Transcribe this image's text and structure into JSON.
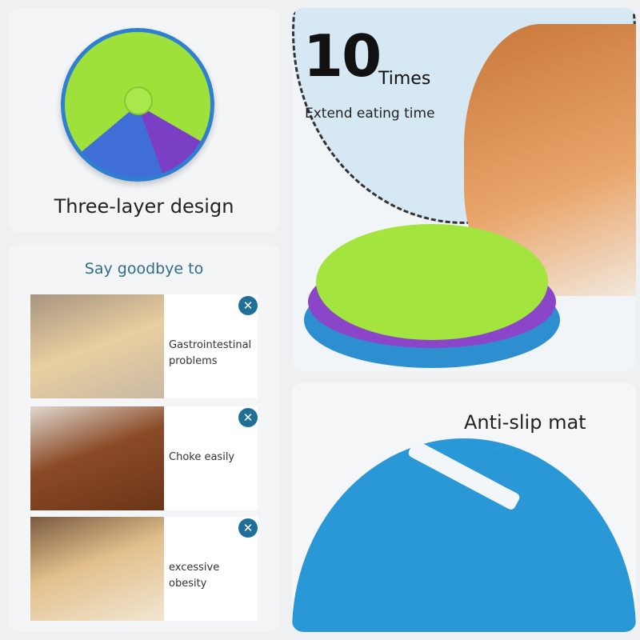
{
  "layers": {
    "caption": "Three-layer design"
  },
  "timing": {
    "number": "10",
    "unit": "Times",
    "subtitle": "Extend eating time"
  },
  "goodbye": {
    "title": "Say goodbye to",
    "items": [
      {
        "label": "Gastrointestinal problems",
        "icon": "close-icon",
        "glyph": "✕"
      },
      {
        "label": "Choke easily",
        "icon": "close-icon",
        "glyph": "✕"
      },
      {
        "label": "excessive obesity",
        "icon": "close-icon",
        "glyph": "✕"
      }
    ]
  },
  "mat": {
    "caption": "Anti-slip mat"
  },
  "colors": {
    "accent": "#1f6f99",
    "green": "#9ee13a",
    "purple": "#7b3fc6",
    "blue": "#2e8fd0"
  }
}
